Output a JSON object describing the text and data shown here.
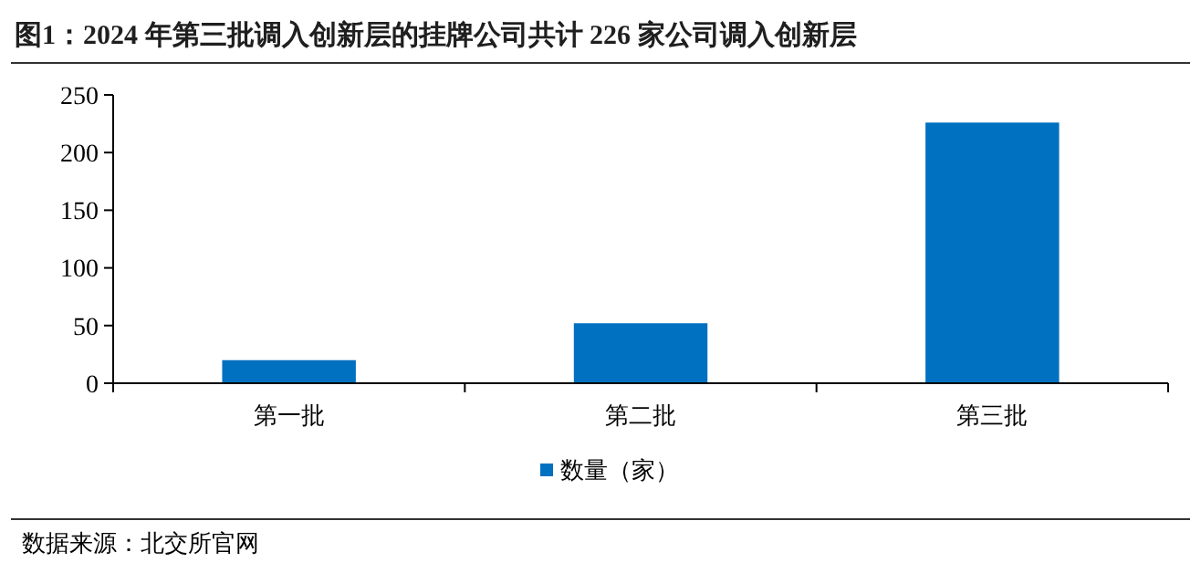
{
  "chart_data": {
    "type": "bar",
    "title": "图1：2024 年第三批调入创新层的挂牌公司共计 226 家公司调入创新层",
    "categories": [
      "第一批",
      "第二批",
      "第三批"
    ],
    "series": [
      {
        "name": "数量（家）",
        "color": "#0070c0",
        "values": [
          20,
          52,
          226
        ]
      }
    ],
    "ylim": [
      0,
      250
    ],
    "yticks": [
      0,
      50,
      100,
      150,
      200,
      250
    ],
    "grid": false,
    "legend": "bottom",
    "annotations": [
      "数据来源：北交所官网"
    ]
  }
}
